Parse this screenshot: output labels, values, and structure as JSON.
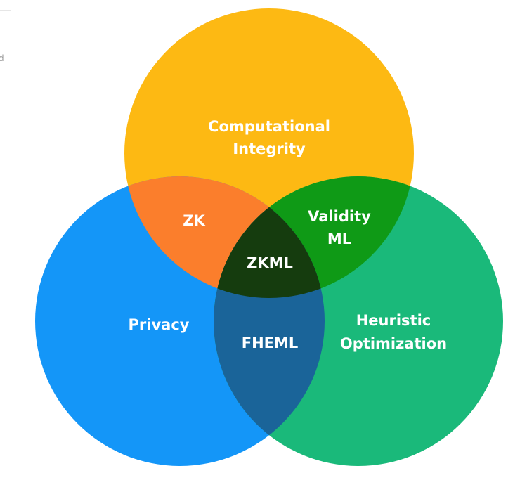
{
  "edge_text": "d",
  "diagram": {
    "sets": [
      {
        "id": "top",
        "label": [
          "Computational",
          "Integrity"
        ],
        "color": "#FDB913"
      },
      {
        "id": "left",
        "label": [
          "Privacy"
        ],
        "color": "#1496F8"
      },
      {
        "id": "right",
        "label": [
          "Heuristic",
          "Optimization"
        ],
        "color": "#1AB97A"
      }
    ],
    "intersections": [
      {
        "sets": [
          "top",
          "left"
        ],
        "label": [
          "ZK"
        ],
        "color": "#FB7E2C"
      },
      {
        "sets": [
          "top",
          "right"
        ],
        "label": [
          "Validity",
          "ML"
        ],
        "color": "#0F9A16"
      },
      {
        "sets": [
          "left",
          "right"
        ],
        "label": [
          "FHEML"
        ],
        "color": "#1A6499"
      },
      {
        "sets": [
          "top",
          "left",
          "right"
        ],
        "label": [
          "ZKML"
        ],
        "color": "#153C0E"
      }
    ]
  }
}
